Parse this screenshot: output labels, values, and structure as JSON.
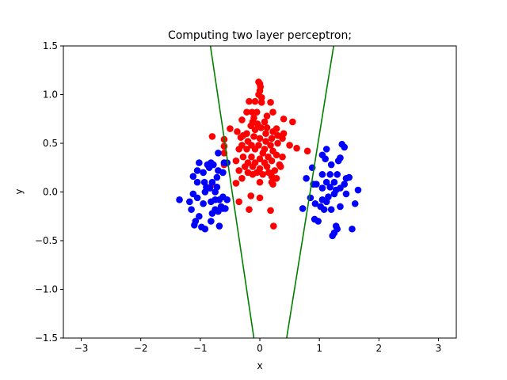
{
  "chart_data": {
    "type": "scatter",
    "title": "Computing two layer perceptron;",
    "xlabel": "x",
    "ylabel": "y",
    "xlim": [
      -3.3,
      3.3
    ],
    "ylim": [
      -1.5,
      1.5
    ],
    "grid": false,
    "legend": "none",
    "x_ticks": [
      -3,
      -2,
      -1,
      0,
      1,
      2,
      3
    ],
    "x_tick_labels": [
      "−3",
      "−2",
      "−1",
      "0",
      "1",
      "2",
      "3"
    ],
    "y_ticks": [
      -1.5,
      -1.0,
      -0.5,
      0.0,
      0.5,
      1.0,
      1.5
    ],
    "y_tick_labels": [
      "−1.5",
      "−1.0",
      "−0.5",
      "0.0",
      "0.5",
      "1.0",
      "1.5"
    ],
    "series": [
      {
        "color": "#ff0000",
        "points": [
          [
            -0.02,
            1.13
          ],
          [
            0.0,
            1.11
          ],
          [
            0.01,
            1.08
          ],
          [
            0.0,
            1.04
          ],
          [
            -0.02,
            1.0
          ],
          [
            0.03,
            0.97
          ],
          [
            -0.18,
            0.93
          ],
          [
            -0.08,
            0.93
          ],
          [
            0.03,
            0.92
          ],
          [
            0.18,
            0.92
          ],
          [
            -0.22,
            0.82
          ],
          [
            -0.13,
            0.82
          ],
          [
            -0.05,
            0.82
          ],
          [
            0.22,
            0.82
          ],
          [
            -0.1,
            0.76
          ],
          [
            0.12,
            0.78
          ],
          [
            0.4,
            0.75
          ],
          [
            0.55,
            0.72
          ],
          [
            -0.3,
            0.74
          ],
          [
            -0.12,
            0.72
          ],
          [
            -0.04,
            0.7
          ],
          [
            0.08,
            0.72
          ],
          [
            -0.15,
            0.68
          ],
          [
            0.02,
            0.66
          ],
          [
            0.12,
            0.66
          ],
          [
            -0.5,
            0.65
          ],
          [
            -0.38,
            0.62
          ],
          [
            -0.08,
            0.64
          ],
          [
            0.28,
            0.65
          ],
          [
            -0.28,
            0.58
          ],
          [
            -0.22,
            0.6
          ],
          [
            0.1,
            0.6
          ],
          [
            0.22,
            0.62
          ],
          [
            0.3,
            0.58
          ],
          [
            -0.8,
            0.57
          ],
          [
            -0.6,
            0.54
          ],
          [
            -0.32,
            0.56
          ],
          [
            -0.1,
            0.57
          ],
          [
            0.0,
            0.55
          ],
          [
            0.2,
            0.55
          ],
          [
            0.38,
            0.55
          ],
          [
            0.4,
            0.6
          ],
          [
            -0.2,
            0.52
          ],
          [
            0.1,
            0.52
          ],
          [
            0.3,
            0.5
          ],
          [
            -0.6,
            0.47
          ],
          [
            -0.3,
            0.48
          ],
          [
            -0.14,
            0.48
          ],
          [
            -0.02,
            0.48
          ],
          [
            0.18,
            0.48
          ],
          [
            0.5,
            0.48
          ],
          [
            0.62,
            0.45
          ],
          [
            -0.35,
            0.44
          ],
          [
            -0.22,
            0.44
          ],
          [
            -0.08,
            0.44
          ],
          [
            0.08,
            0.44
          ],
          [
            0.22,
            0.42
          ],
          [
            0.8,
            0.42
          ],
          [
            -0.6,
            0.4
          ],
          [
            0.05,
            0.4
          ],
          [
            0.28,
            0.38
          ],
          [
            -0.28,
            0.36
          ],
          [
            -0.14,
            0.36
          ],
          [
            0.14,
            0.36
          ],
          [
            0.38,
            0.36
          ],
          [
            0.0,
            0.34
          ],
          [
            -0.4,
            0.32
          ],
          [
            0.2,
            0.32
          ],
          [
            -0.2,
            0.3
          ],
          [
            -0.08,
            0.3
          ],
          [
            0.08,
            0.3
          ],
          [
            0.33,
            0.28
          ],
          [
            -0.6,
            0.28
          ],
          [
            -0.25,
            0.26
          ],
          [
            -0.12,
            0.26
          ],
          [
            0.12,
            0.26
          ],
          [
            0.35,
            0.26
          ],
          [
            0.0,
            0.24
          ],
          [
            -0.35,
            0.22
          ],
          [
            0.25,
            0.22
          ],
          [
            -0.2,
            0.2
          ],
          [
            -0.05,
            0.2
          ],
          [
            0.15,
            0.2
          ],
          [
            -0.12,
            0.18
          ],
          [
            0.05,
            0.18
          ],
          [
            0.2,
            0.16
          ],
          [
            0.28,
            0.14
          ],
          [
            -0.3,
            0.14
          ],
          [
            0.2,
            0.1
          ],
          [
            0.0,
            0.1
          ],
          [
            0.22,
            0.08
          ],
          [
            -0.4,
            0.09
          ],
          [
            -0.8,
            0.08
          ],
          [
            -0.15,
            -0.04
          ],
          [
            0.0,
            -0.06
          ],
          [
            -0.35,
            -0.1
          ],
          [
            -0.18,
            -0.18
          ],
          [
            0.18,
            -0.19
          ],
          [
            0.23,
            -0.35
          ]
        ]
      },
      {
        "color": "#0000ff",
        "points": [
          [
            -1.35,
            -0.08
          ],
          [
            -1.18,
            -0.1
          ],
          [
            -1.12,
            -0.02
          ],
          [
            -1.15,
            -0.18
          ],
          [
            -1.05,
            -0.06
          ],
          [
            -1.05,
            0.1
          ],
          [
            -1.12,
            0.16
          ],
          [
            -1.05,
            0.22
          ],
          [
            -1.02,
            0.3
          ],
          [
            -0.95,
            0.2
          ],
          [
            -0.93,
            0.1
          ],
          [
            -0.92,
            0.0
          ],
          [
            -0.95,
            -0.12
          ],
          [
            -1.02,
            -0.25
          ],
          [
            -1.08,
            -0.3
          ],
          [
            -1.1,
            -0.34
          ],
          [
            -0.98,
            -0.36
          ],
          [
            -0.92,
            -0.38
          ],
          [
            -0.82,
            -0.3
          ],
          [
            -0.8,
            -0.22
          ],
          [
            -0.82,
            -0.1
          ],
          [
            -0.84,
            0.04
          ],
          [
            -0.8,
            0.1
          ],
          [
            -0.85,
            0.25
          ],
          [
            -0.82,
            0.3
          ],
          [
            -0.78,
            0.28
          ],
          [
            -0.7,
            0.22
          ],
          [
            -0.7,
            0.4
          ],
          [
            -0.72,
            0.05
          ],
          [
            -0.75,
            0.0
          ],
          [
            -0.75,
            -0.08
          ],
          [
            -0.75,
            -0.18
          ],
          [
            -0.7,
            -0.2
          ],
          [
            -0.65,
            -0.15
          ],
          [
            -0.62,
            -0.17
          ],
          [
            -0.58,
            -0.17
          ],
          [
            -0.72,
            0.15
          ],
          [
            -0.6,
            0.3
          ],
          [
            -0.55,
            0.3
          ],
          [
            -0.62,
            0.2
          ],
          [
            -0.68,
            -0.08
          ],
          [
            -0.62,
            -0.05
          ],
          [
            -0.55,
            -0.08
          ],
          [
            -0.68,
            -0.35
          ],
          [
            -0.88,
            0.28
          ],
          [
            -0.9,
            0.05
          ],
          [
            0.72,
            -0.17
          ],
          [
            0.78,
            0.14
          ],
          [
            0.85,
            -0.06
          ],
          [
            0.88,
            0.25
          ],
          [
            0.9,
            0.08
          ],
          [
            0.93,
            -0.12
          ],
          [
            0.95,
            0.08
          ],
          [
            0.92,
            -0.28
          ],
          [
            0.98,
            -0.3
          ],
          [
            1.02,
            -0.15
          ],
          [
            1.05,
            -0.08
          ],
          [
            1.05,
            0.04
          ],
          [
            1.05,
            0.18
          ],
          [
            1.05,
            0.38
          ],
          [
            1.08,
            -0.18
          ],
          [
            1.1,
            0.34
          ],
          [
            1.12,
            0.44
          ],
          [
            1.12,
            -0.1
          ],
          [
            1.12,
            0.1
          ],
          [
            1.15,
            -0.05
          ],
          [
            1.18,
            0.05
          ],
          [
            1.18,
            0.18
          ],
          [
            1.2,
            0.28
          ],
          [
            1.2,
            -0.18
          ],
          [
            1.22,
            -0.45
          ],
          [
            1.25,
            -0.42
          ],
          [
            1.25,
            0.1
          ],
          [
            1.25,
            -0.02
          ],
          [
            1.28,
            0.02
          ],
          [
            1.3,
            0.18
          ],
          [
            1.3,
            -0.38
          ],
          [
            1.32,
            0.32
          ],
          [
            1.35,
            -0.15
          ],
          [
            1.35,
            0.04
          ],
          [
            1.35,
            0.35
          ],
          [
            1.38,
            0.49
          ],
          [
            1.42,
            0.46
          ],
          [
            1.42,
            0.08
          ],
          [
            1.45,
            0.14
          ],
          [
            1.45,
            -0.02
          ],
          [
            1.5,
            0.15
          ],
          [
            1.55,
            -0.38
          ],
          [
            1.6,
            -0.12
          ],
          [
            1.65,
            0.02
          ],
          [
            1.28,
            -0.35
          ]
        ]
      }
    ],
    "lines": [
      {
        "color": "#008000",
        "points": [
          [
            -0.83,
            1.5
          ],
          [
            -0.1,
            -1.5
          ]
        ]
      },
      {
        "color": "#008000",
        "points": [
          [
            1.24,
            1.5
          ],
          [
            0.45,
            -1.5
          ]
        ]
      }
    ]
  }
}
